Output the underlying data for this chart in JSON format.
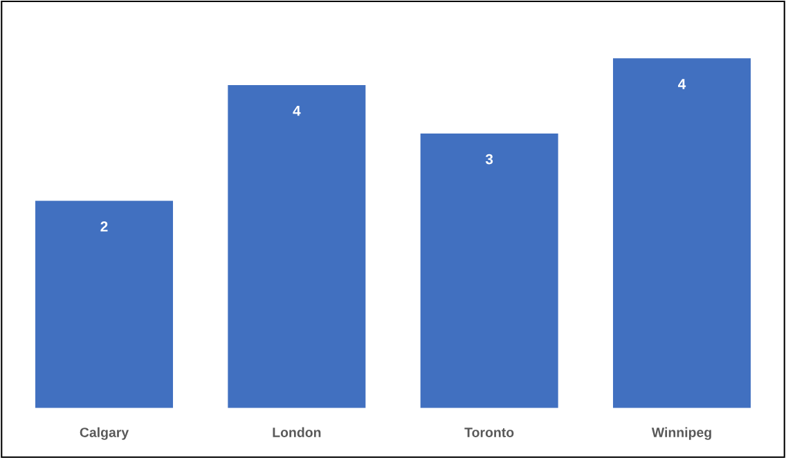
{
  "chart_data": {
    "type": "bar",
    "categories": [
      "Calgary",
      "London",
      "Toronto",
      "Winnipeg"
    ],
    "values": [
      2.4,
      3.74,
      3.18,
      4.05
    ],
    "value_labels": [
      "2",
      "4",
      "3",
      "4"
    ],
    "color": "#4170c0",
    "grid": false,
    "legend": false
  }
}
